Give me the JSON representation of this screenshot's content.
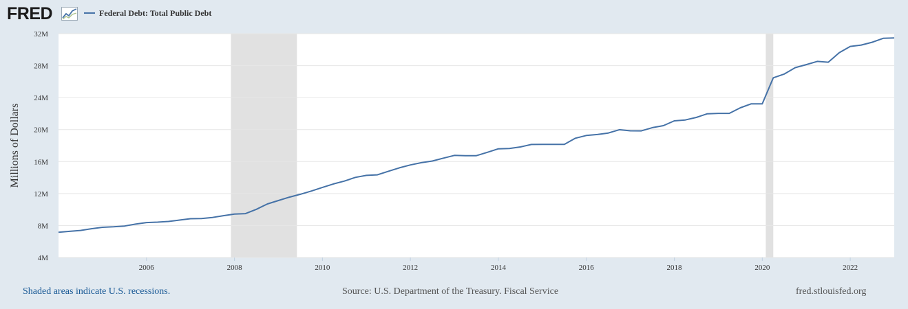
{
  "header": {
    "logo_text": "FRED",
    "logo_icon": "line-chart-icon",
    "series_title": "Federal Debt: Total Public Debt"
  },
  "footer": {
    "recession_note": "Shaded areas indicate U.S. recessions.",
    "source": "Source: U.S. Department of the Treasury. Fiscal Service",
    "site": "fred.stlouisfed.org"
  },
  "colors": {
    "line": "#4572a7",
    "recession": "#e1e1e1",
    "background": "#e1e9f0",
    "plot": "#ffffff"
  },
  "chart_data": {
    "type": "line",
    "ylabel": "Millions of Dollars",
    "xlabel": "",
    "ylim": [
      4000000,
      32000000
    ],
    "xlim": [
      2004.0,
      2023.0
    ],
    "y_ticks": [
      {
        "value": 4000000,
        "label": "4M"
      },
      {
        "value": 8000000,
        "label": "8M"
      },
      {
        "value": 12000000,
        "label": "12M"
      },
      {
        "value": 16000000,
        "label": "16M"
      },
      {
        "value": 20000000,
        "label": "20M"
      },
      {
        "value": 24000000,
        "label": "24M"
      },
      {
        "value": 28000000,
        "label": "28M"
      },
      {
        "value": 32000000,
        "label": "32M"
      }
    ],
    "x_ticks": [
      {
        "value": 2006,
        "label": "2006"
      },
      {
        "value": 2008,
        "label": "2008"
      },
      {
        "value": 2010,
        "label": "2010"
      },
      {
        "value": 2012,
        "label": "2012"
      },
      {
        "value": 2014,
        "label": "2014"
      },
      {
        "value": 2016,
        "label": "2016"
      },
      {
        "value": 2018,
        "label": "2018"
      },
      {
        "value": 2020,
        "label": "2020"
      },
      {
        "value": 2022,
        "label": "2022"
      }
    ],
    "grid": true,
    "recessions": [
      {
        "start": 2007.92,
        "end": 2009.42
      },
      {
        "start": 2020.08,
        "end": 2020.25
      }
    ],
    "series": [
      {
        "name": "Federal Debt: Total Public Debt",
        "x": [
          2004.0,
          2004.25,
          2004.5,
          2004.75,
          2005.0,
          2005.25,
          2005.5,
          2005.75,
          2006.0,
          2006.25,
          2006.5,
          2006.75,
          2007.0,
          2007.25,
          2007.5,
          2007.75,
          2008.0,
          2008.25,
          2008.5,
          2008.75,
          2009.0,
          2009.25,
          2009.5,
          2009.75,
          2010.0,
          2010.25,
          2010.5,
          2010.75,
          2011.0,
          2011.25,
          2011.5,
          2011.75,
          2012.0,
          2012.25,
          2012.5,
          2012.75,
          2013.0,
          2013.25,
          2013.5,
          2013.75,
          2014.0,
          2014.25,
          2014.5,
          2014.75,
          2015.0,
          2015.25,
          2015.5,
          2015.75,
          2016.0,
          2016.25,
          2016.5,
          2016.75,
          2017.0,
          2017.25,
          2017.5,
          2017.75,
          2018.0,
          2018.25,
          2018.5,
          2018.75,
          2019.0,
          2019.25,
          2019.5,
          2019.75,
          2020.0,
          2020.25,
          2020.5,
          2020.75,
          2021.0,
          2021.25,
          2021.5,
          2021.75,
          2022.0,
          2022.25,
          2022.5,
          2022.75,
          2023.0
        ],
        "values": [
          7150000,
          7270000,
          7380000,
          7600000,
          7780000,
          7840000,
          7930000,
          8170000,
          8370000,
          8420000,
          8510000,
          8680000,
          8850000,
          8870000,
          9010000,
          9230000,
          9440000,
          9490000,
          10030000,
          10700000,
          11130000,
          11550000,
          11910000,
          12310000,
          12770000,
          13200000,
          13560000,
          14020000,
          14270000,
          14340000,
          14790000,
          15220000,
          15580000,
          15860000,
          16070000,
          16430000,
          16770000,
          16740000,
          16740000,
          17160000,
          17600000,
          17630000,
          17830000,
          18140000,
          18150000,
          18150000,
          18150000,
          18920000,
          19260000,
          19380000,
          19570000,
          19980000,
          19850000,
          19840000,
          20240000,
          20490000,
          21090000,
          21200000,
          21520000,
          21980000,
          22030000,
          22030000,
          22720000,
          23220000,
          23220000,
          26480000,
          26950000,
          27750000,
          28130000,
          28530000,
          28430000,
          29620000,
          30400000,
          30570000,
          30930000,
          31420000,
          31460000
        ]
      }
    ]
  }
}
